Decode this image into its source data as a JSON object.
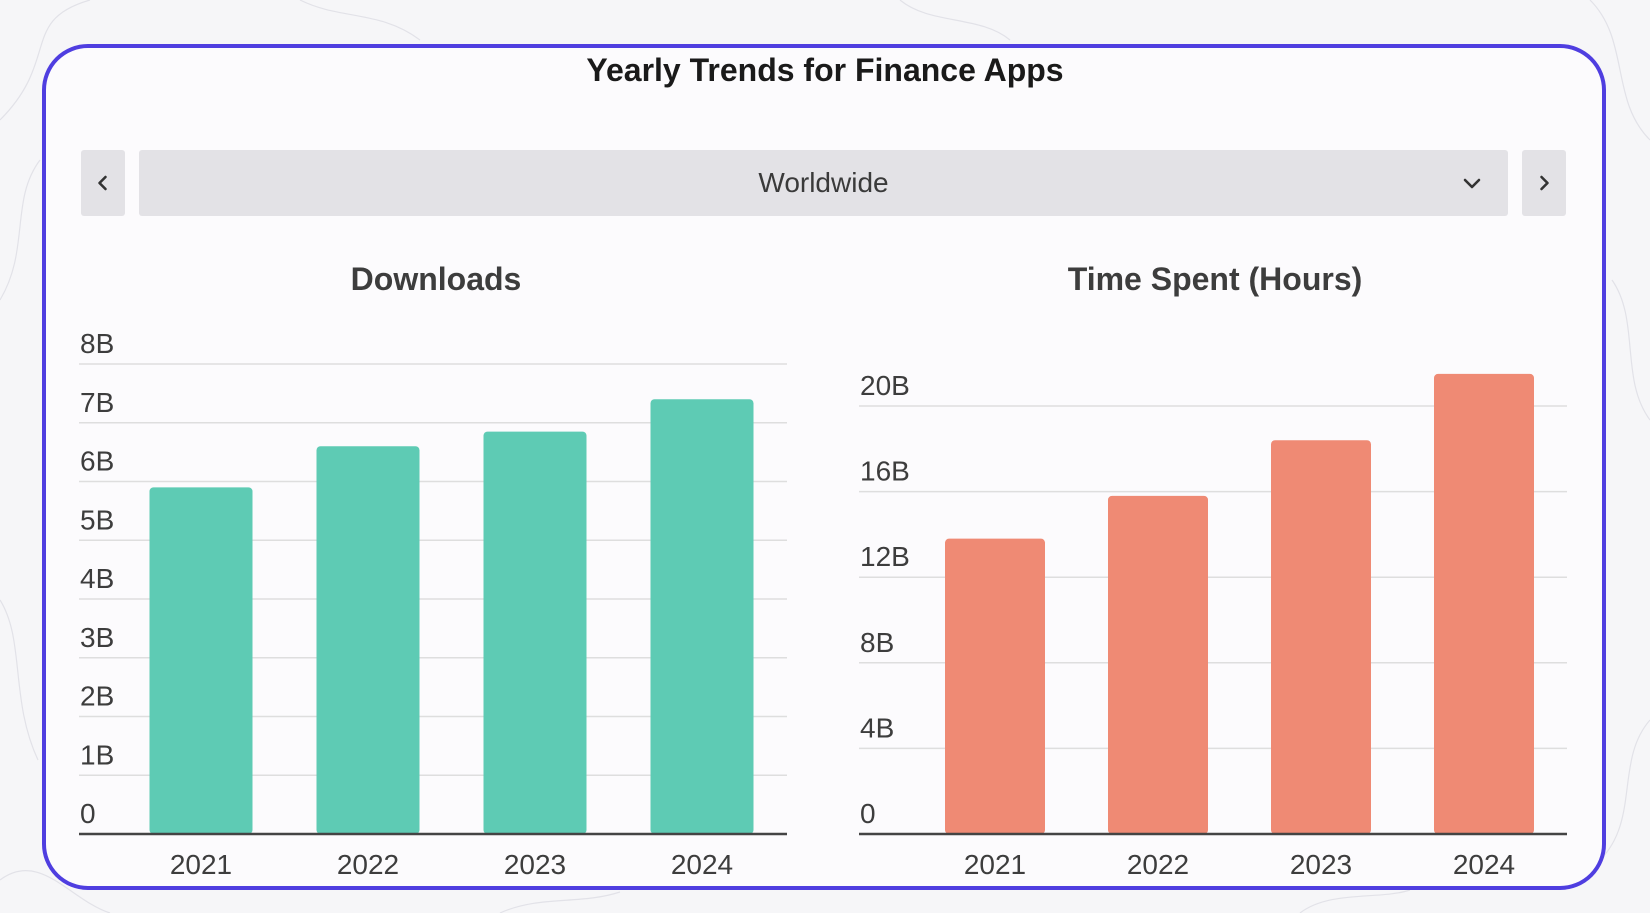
{
  "title": "Yearly Trends for Finance Apps",
  "region_selector": {
    "value": "Worldwide"
  },
  "icons": {
    "prev": "chevron-left-icon",
    "next": "chevron-right-icon",
    "dropdown": "chevron-down-icon"
  },
  "colors": {
    "border": "#4f3ee0",
    "downloads": "#5ecbb4",
    "time_spent": "#ef8a74"
  },
  "chart_data": [
    {
      "type": "bar",
      "title": "Downloads",
      "categories": [
        "2021",
        "2022",
        "2023",
        "2024"
      ],
      "values": [
        5.9,
        6.6,
        6.85,
        7.4
      ],
      "ylim": [
        0,
        8
      ],
      "yticks": [
        0,
        1,
        2,
        3,
        4,
        5,
        6,
        7,
        8
      ],
      "ytick_labels": [
        "0",
        "1B",
        "2B",
        "3B",
        "4B",
        "5B",
        "6B",
        "7B",
        "8B"
      ],
      "grid": true,
      "legend": "none"
    },
    {
      "type": "bar",
      "title": "Time Spent (Hours)",
      "categories": [
        "2021",
        "2022",
        "2023",
        "2024"
      ],
      "values": [
        13.8,
        15.8,
        18.4,
        21.5
      ],
      "ylim": [
        0,
        20
      ],
      "yticks": [
        0,
        4,
        8,
        12,
        16,
        20
      ],
      "ytick_labels": [
        "0",
        "4B",
        "8B",
        "12B",
        "16B",
        "20B"
      ],
      "grid": true,
      "legend": "none"
    }
  ]
}
